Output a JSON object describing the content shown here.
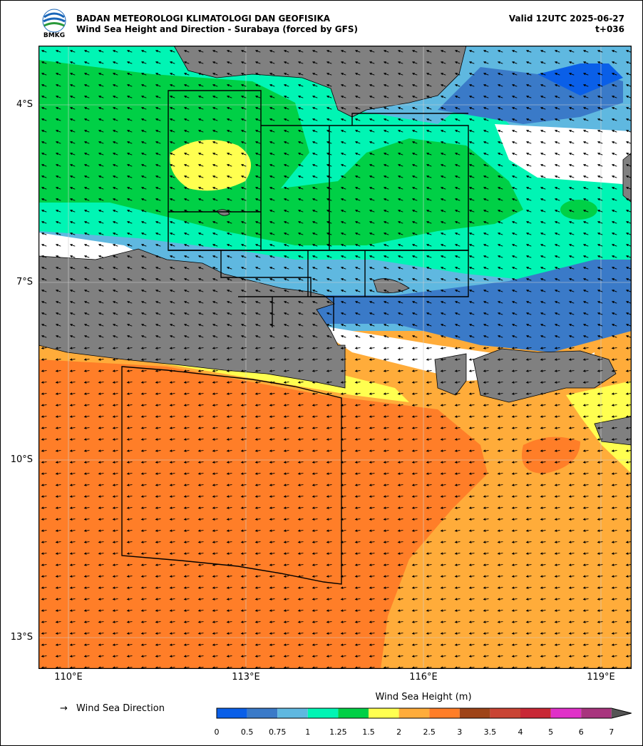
{
  "header": {
    "agency": "BADAN METEOROLOGI KLIMATOLOGI DAN GEOFISIKA",
    "product": "Wind Sea Height and Direction - Surabaya (forced by GFS)",
    "valid": "Valid 12UTC 2025-06-27",
    "lead": "t+036",
    "logo_text": "BMKG"
  },
  "axes": {
    "lat_labels": [
      "4°S",
      "7°S",
      "10°S",
      "13°S"
    ],
    "lon_labels": [
      "110°E",
      "113°E",
      "116°E",
      "119°E"
    ]
  },
  "legend": {
    "direction_label": "Wind Sea Direction",
    "direction_symbol": "→",
    "colorbar_title": "Wind Sea Height (m)",
    "ticks": [
      "0",
      "0.5",
      "0.75",
      "1",
      "1.25",
      "1.5",
      "2",
      "2.5",
      "3",
      "3.5",
      "4",
      "5",
      "6",
      "7"
    ],
    "colors": [
      "#0a5fe8",
      "#3a7ac8",
      "#5fb8e0",
      "#00f5b4",
      "#00d046",
      "#ffff50",
      "#ffac3a",
      "#ff7e28",
      "#9e4418",
      "#c94434",
      "#c82836",
      "#e030c8",
      "#a8347e"
    ],
    "land_color": "#808080"
  }
}
